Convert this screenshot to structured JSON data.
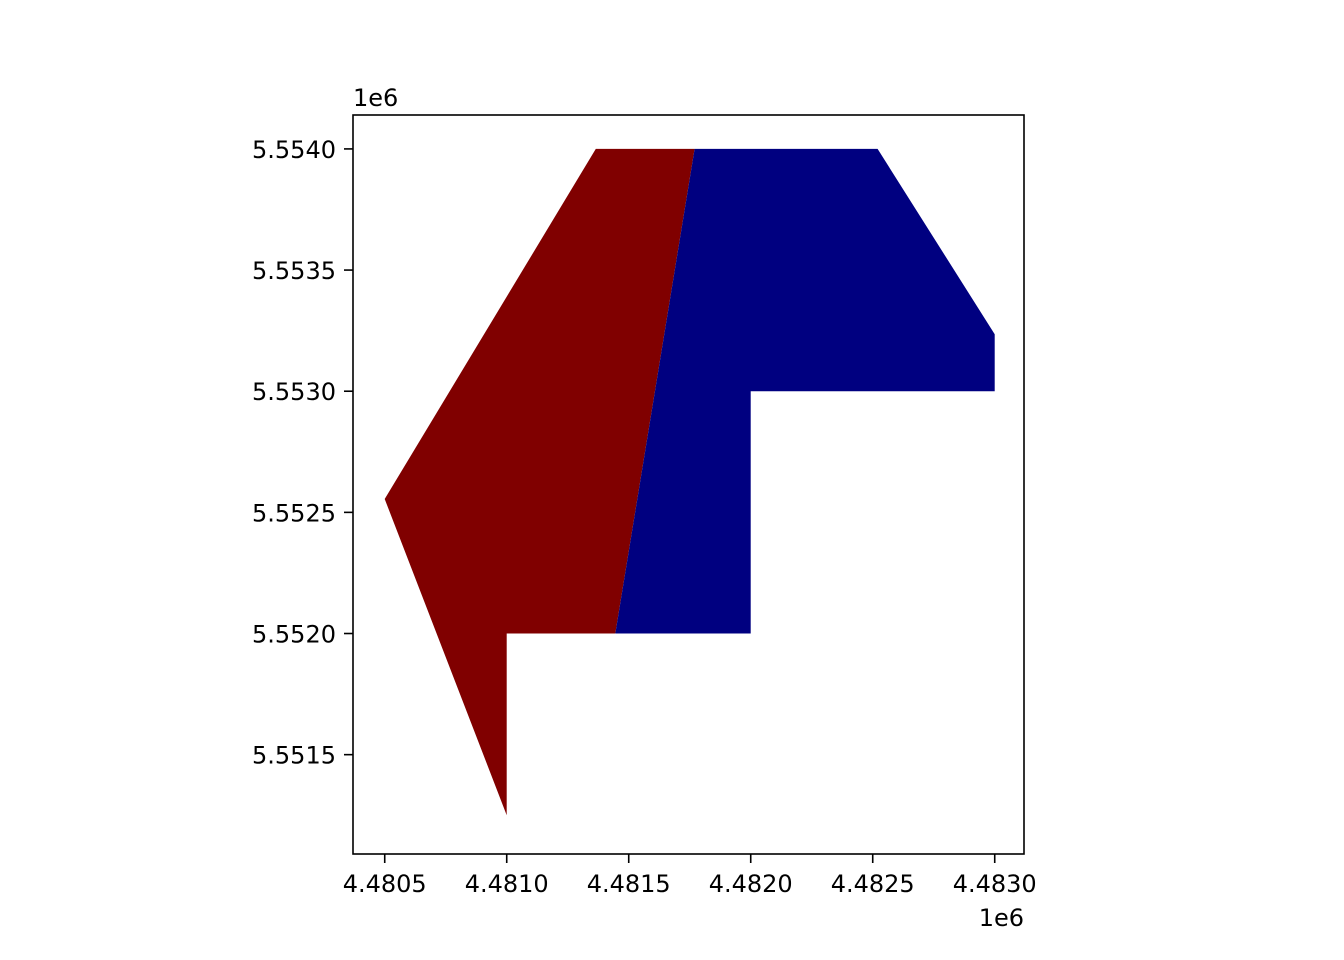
{
  "chart_data": {
    "type": "polygon-map",
    "title": "",
    "xlabel": "",
    "ylabel": "",
    "x_offset_label": "1e6",
    "y_offset_label": "1e6",
    "xlim": [
      4480370,
      4483120
    ],
    "ylim": [
      5551090,
      5554140
    ],
    "x_ticks": [
      {
        "value": 4480500,
        "label": "4.4805"
      },
      {
        "value": 4481000,
        "label": "4.4810"
      },
      {
        "value": 4481500,
        "label": "4.4815"
      },
      {
        "value": 4482000,
        "label": "4.4820"
      },
      {
        "value": 4482500,
        "label": "4.4825"
      },
      {
        "value": 4483000,
        "label": "4.4830"
      }
    ],
    "y_ticks": [
      {
        "value": 5551500,
        "label": "5.5515"
      },
      {
        "value": 5552000,
        "label": "5.5520"
      },
      {
        "value": 5552500,
        "label": "5.5525"
      },
      {
        "value": 5553000,
        "label": "5.5530"
      },
      {
        "value": 5553500,
        "label": "5.5535"
      },
      {
        "value": 5554000,
        "label": "5.5540"
      }
    ],
    "grid": false,
    "legend": "none",
    "polygons": [
      {
        "id": "dark-red-region",
        "color": "#800000",
        "points": [
          [
            4481365,
            5554000
          ],
          [
            4481770,
            5554000
          ],
          [
            4481445,
            5552000
          ],
          [
            4481000,
            5552000
          ],
          [
            4481000,
            5551250
          ],
          [
            4480500,
            5552555
          ]
        ]
      },
      {
        "id": "navy-region",
        "color": "#000080",
        "points": [
          [
            4481770,
            5554000
          ],
          [
            4482520,
            5554000
          ],
          [
            4483000,
            5553235
          ],
          [
            4483000,
            5553000
          ],
          [
            4482000,
            5553000
          ],
          [
            4482000,
            5552000
          ],
          [
            4481445,
            5552000
          ]
        ]
      }
    ]
  }
}
